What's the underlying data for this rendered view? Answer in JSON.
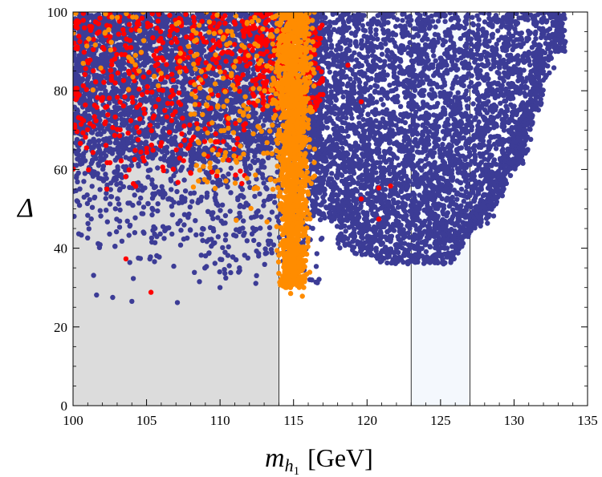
{
  "chart_data": {
    "type": "scatter",
    "title": "",
    "xlabel": "m_h1 [GeV]",
    "xlabel_parts": {
      "symbol": "m",
      "sub": "h",
      "subsub": "1",
      "unit": "[GeV]"
    },
    "ylabel": "Δ",
    "xlim": [
      100,
      135
    ],
    "ylim": [
      0,
      100
    ],
    "xticks": [
      "100",
      "105",
      "110",
      "115",
      "120",
      "125",
      "130",
      "135"
    ],
    "yticks": [
      "0",
      "20",
      "40",
      "60",
      "80",
      "100"
    ],
    "regions": [
      {
        "name": "excluded-lep-region",
        "x": [
          100,
          114
        ],
        "y": [
          0,
          100
        ],
        "color": "#dcdcdc"
      },
      {
        "name": "higgs-window-band",
        "x": [
          123,
          127
        ],
        "y": [
          0,
          100
        ],
        "color": "#f4f8fd"
      }
    ],
    "series": [
      {
        "name": "blue-points",
        "color": "#3c3c96",
        "description_note": "dense cloud from ~27 to 100, widest across 116-133 GeV, lower envelope ~35-38 near 120-126 GeV",
        "isolated_points": [
          [
            101.6,
            28.1
          ],
          [
            102.7,
            27.5
          ],
          [
            104.0,
            26.5
          ],
          [
            107.1,
            26.2
          ],
          [
            104.1,
            32.3
          ],
          [
            101.4,
            33.1
          ],
          [
            108.6,
            31.5
          ],
          [
            110.0,
            30.0
          ]
        ]
      },
      {
        "name": "red-points",
        "color": "#ff0000",
        "isolated_points": [
          [
            103.6,
            37.3
          ],
          [
            105.3,
            28.8
          ],
          [
            118.7,
            86.5
          ],
          [
            119.6,
            52.5
          ],
          [
            120.8,
            55.3
          ],
          [
            121.6,
            55.8
          ],
          [
            120.8,
            47.4
          ],
          [
            119.6,
            77.2
          ],
          [
            106.1,
            60.6
          ],
          [
            104.1,
            56.4
          ],
          [
            102.3,
            55.0
          ]
        ]
      },
      {
        "name": "orange-points",
        "color": "#ff8c00",
        "isolated_points": [
          [
            114.8,
            28.5
          ],
          [
            115.6,
            27.8
          ],
          [
            114.0,
            33.6
          ],
          [
            115.2,
            31.7
          ],
          [
            116.1,
            33.9
          ],
          [
            113.2,
            46.7
          ],
          [
            112.1,
            50.1
          ],
          [
            111.1,
            47.1
          ]
        ]
      }
    ]
  }
}
